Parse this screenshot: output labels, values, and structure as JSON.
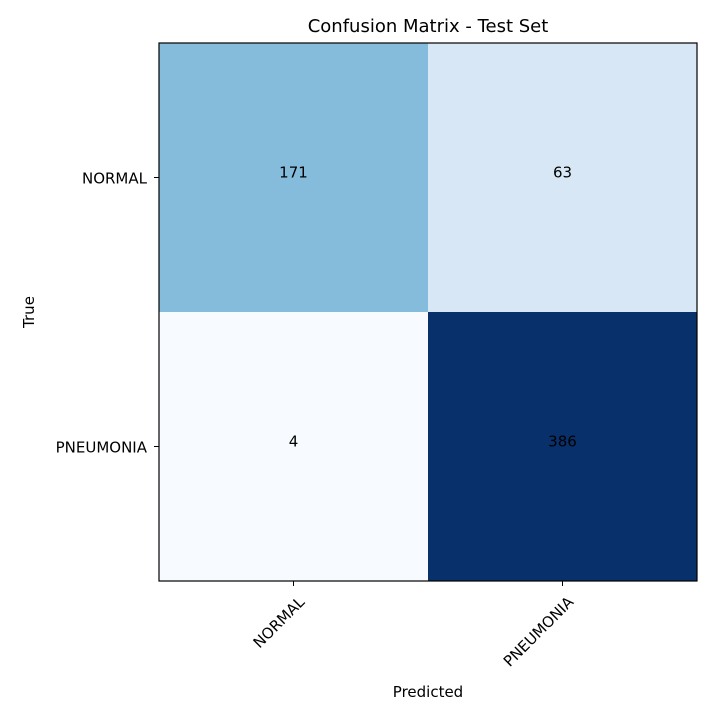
{
  "chart_data": {
    "type": "heatmap",
    "title": "Confusion Matrix - Test Set",
    "xlabel": "Predicted",
    "ylabel": "True",
    "x_categories": [
      "NORMAL",
      "PNEUMONIA"
    ],
    "y_categories": [
      "NORMAL",
      "PNEUMONIA"
    ],
    "values": [
      [
        171,
        63
      ],
      [
        4,
        386
      ]
    ],
    "colormap": "Blues",
    "vmin": 4,
    "vmax": 386,
    "x_tick_rotation": 45,
    "grid": false
  }
}
